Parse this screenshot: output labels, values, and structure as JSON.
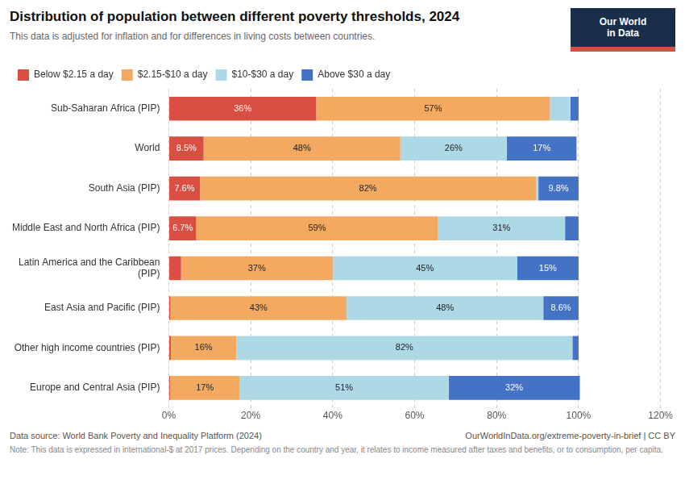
{
  "chart_data": {
    "type": "bar",
    "orientation": "horizontal",
    "stacked": true,
    "title": "Distribution of population between different poverty thresholds, 2024",
    "subtitle": "This data is adjusted for inflation and for differences in living costs between countries.",
    "logo_text": [
      "Our World",
      "in Data"
    ],
    "footnotes": [
      "Data source: World Bank Poverty and Inequality Platform (2024)",
      "OurWorldInData.org/extreme-poverty-in-brief | CC BY",
      "Note: This data is expressed in international-$ at 2017 prices. Depending on the country and year, it relates to income measured after taxes and benefits, or to consumption, per capita."
    ],
    "categories": [
      "Sub-Saharan Africa (PIP)",
      "World",
      "South Asia (PIP)",
      "Middle East and North Africa (PIP)",
      "Latin America and the Caribbean\n(PIP)",
      "East Asia and Pacific (PIP)",
      "Other high income countries (PIP)",
      "Europe and Central Asia (PIP)"
    ],
    "series": [
      {
        "name": "Below $2.15 a day",
        "color": "#d94f43",
        "values": [
          36,
          8.5,
          7.6,
          6.7,
          3,
          0.4,
          0.5,
          0.3
        ],
        "value_labels": [
          "36%",
          "8.5%",
          "7.6%",
          "6.7%",
          null,
          null,
          null,
          null
        ]
      },
      {
        "name": "$2.15-$10 a day",
        "color": "#f4a961",
        "values": [
          57,
          48,
          82,
          59,
          37,
          43,
          16,
          17
        ],
        "value_labels": [
          "57%",
          "48%",
          "82%",
          "59%",
          "37%",
          "43%",
          "16%",
          "17%"
        ]
      },
      {
        "name": "$10-$30 a day",
        "color": "#add8e6",
        "values": [
          5,
          26,
          0.6,
          31,
          45,
          48,
          82,
          51
        ],
        "value_labels": [
          null,
          "26%",
          null,
          "31%",
          "45%",
          "48%",
          "82%",
          "51%"
        ]
      },
      {
        "name": "Above $30 a day",
        "color": "#4472c4",
        "values": [
          2,
          17,
          9.8,
          3.3,
          15,
          8.6,
          1.5,
          32
        ],
        "value_labels": [
          null,
          "17%",
          "9.8%",
          null,
          "15%",
          "8.6%",
          null,
          "32%"
        ]
      }
    ],
    "xlim": [
      0,
      120
    ],
    "xticks": [
      {
        "value": 0,
        "label": "0%"
      },
      {
        "value": 20,
        "label": "20%"
      },
      {
        "value": 40,
        "label": "40%"
      },
      {
        "value": 60,
        "label": "60%"
      },
      {
        "value": 80,
        "label": "80%"
      },
      {
        "value": 100,
        "label": "100%"
      },
      {
        "value": 120,
        "label": "120%"
      }
    ],
    "grid": true,
    "legend": "top",
    "data_labels": true
  }
}
